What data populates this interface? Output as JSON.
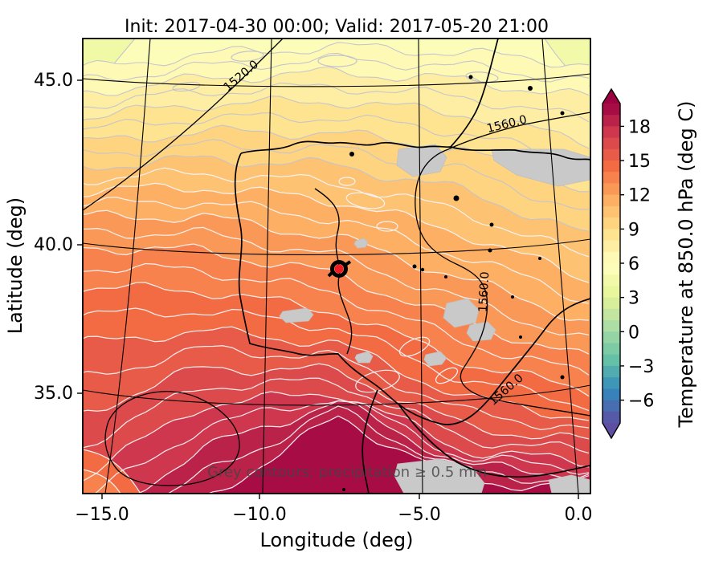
{
  "title": "Init: 2017-04-30 00:00; Valid: 2017-05-20 21:00",
  "axes": {
    "x": {
      "label": "Longitude (deg)",
      "tick_labels": [
        "−15.0",
        "−10.0",
        "−5.0",
        "0.0"
      ]
    },
    "y": {
      "label": "Latitude (deg)",
      "tick_labels": [
        "45.0",
        "40.0",
        "35.0"
      ]
    }
  },
  "colorbar": {
    "label": "Temperature at 850.0 hPa (deg C)",
    "tick_labels": [
      "18",
      "15",
      "12",
      "9",
      "6",
      "3",
      "0",
      "−3",
      "−6"
    ],
    "vmin": -8,
    "vmax": 20,
    "extend": "both"
  },
  "annotations": {
    "note": "Grey contours: precipitation ≥ 0.5 mm",
    "contour_label_1520": "1520.0",
    "contour_label_1560_top": "1560.0",
    "contour_label_1560_mid": "1560.0",
    "contour_label_1560_bottom": "1560.0"
  },
  "colors": {
    "precip_shade": "#c9c9c9",
    "contour_white": "#f5f3f6",
    "contour_grey": "#c3c3cd",
    "coast_black": "#000000",
    "note_grey": "#444444",
    "marker_red": "#ee1c25"
  },
  "chart_data": {
    "type": "heatmap",
    "title": "Init: 2017-04-30 00:00; Valid: 2017-05-20 21:00",
    "xlabel": "Longitude (deg)",
    "ylabel": "Latitude (deg)",
    "xlim": [
      -15.9,
      0.3
    ],
    "ylim": [
      33.4,
      46.3
    ],
    "x_ticks": [
      -15.0,
      -10.0,
      -5.0,
      0.0
    ],
    "y_ticks": [
      45.0,
      40.0,
      35.0
    ],
    "grid": true,
    "field": "temperature at 850.0 hPa (deg C)",
    "colorbar": {
      "label": "Temperature at 850.0 hPa (deg C)",
      "ticks": [
        18,
        15,
        12,
        9,
        6,
        3,
        0,
        -3,
        -6
      ],
      "range": [
        -8,
        20
      ],
      "band_step_degC": 1,
      "colormap": "Spectral_r",
      "extend": "both",
      "position": "right"
    },
    "approx_grid": {
      "lon": [
        -15,
        -10,
        -5,
        0
      ],
      "lat": [
        45,
        42.5,
        40,
        37.5,
        35
      ],
      "values_degC": [
        [
          7,
          6,
          6,
          6
        ],
        [
          9,
          9,
          9,
          8
        ],
        [
          12,
          13,
          11,
          11
        ],
        [
          15,
          16,
          15,
          13
        ],
        [
          17,
          19,
          19,
          18
        ]
      ]
    },
    "overlays": {
      "geopotential_height_contour_labels": [
        1520.0,
        1560.0
      ],
      "precipitation_note": "Grey contours: precipitation ≥ 0.5 mm",
      "precipitation_threshold_mm": 0.5,
      "marker": {
        "lon": -7.7,
        "lat": 39.5
      }
    }
  }
}
